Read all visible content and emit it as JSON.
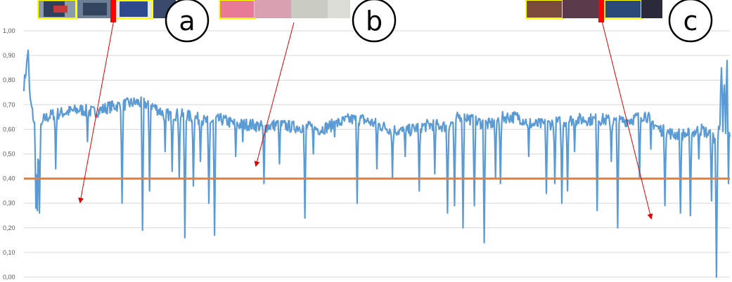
{
  "chart_data": {
    "type": "line",
    "ylim": [
      0,
      1
    ],
    "y_tick_labels": [
      "0,00",
      "0,10",
      "0,20",
      "0,30",
      "0,40",
      "0,50",
      "0,60",
      "0,70",
      "0,80",
      "0,90",
      "1,00"
    ],
    "grid": true,
    "threshold": 0.4,
    "x_count": 1000,
    "series": [
      {
        "color": "#5b9bd5",
        "baseline": [
          [
            0,
            0.78
          ],
          [
            4,
            0.86
          ],
          [
            6,
            0.93
          ],
          [
            8,
            0.75
          ],
          [
            10,
            0.7
          ],
          [
            12,
            0.67
          ],
          [
            16,
            0.6
          ],
          [
            22,
            0.58
          ],
          [
            28,
            0.64
          ],
          [
            40,
            0.66
          ],
          [
            60,
            0.67
          ],
          [
            80,
            0.68
          ],
          [
            100,
            0.67
          ],
          [
            120,
            0.69
          ],
          [
            140,
            0.7
          ],
          [
            160,
            0.71
          ],
          [
            180,
            0.7
          ],
          [
            200,
            0.66
          ],
          [
            220,
            0.66
          ],
          [
            240,
            0.65
          ],
          [
            260,
            0.63
          ],
          [
            280,
            0.64
          ],
          [
            300,
            0.62
          ],
          [
            320,
            0.62
          ],
          [
            340,
            0.61
          ],
          [
            360,
            0.62
          ],
          [
            380,
            0.61
          ],
          [
            400,
            0.61
          ],
          [
            420,
            0.6
          ],
          [
            440,
            0.62
          ],
          [
            460,
            0.64
          ],
          [
            480,
            0.64
          ],
          [
            500,
            0.62
          ],
          [
            520,
            0.6
          ],
          [
            540,
            0.59
          ],
          [
            560,
            0.61
          ],
          [
            580,
            0.62
          ],
          [
            600,
            0.61
          ],
          [
            620,
            0.66
          ],
          [
            640,
            0.63
          ],
          [
            660,
            0.62
          ],
          [
            680,
            0.65
          ],
          [
            700,
            0.65
          ],
          [
            720,
            0.62
          ],
          [
            740,
            0.62
          ],
          [
            760,
            0.63
          ],
          [
            780,
            0.64
          ],
          [
            800,
            0.64
          ],
          [
            820,
            0.64
          ],
          [
            840,
            0.63
          ],
          [
            860,
            0.64
          ],
          [
            880,
            0.66
          ],
          [
            900,
            0.6
          ],
          [
            920,
            0.58
          ],
          [
            940,
            0.58
          ],
          [
            960,
            0.6
          ],
          [
            980,
            0.56
          ],
          [
            1000,
            0.58
          ]
        ],
        "dips": [
          [
            17,
            0.28
          ],
          [
            19,
            0.27
          ],
          [
            22,
            0.26
          ],
          [
            45,
            0.44
          ],
          [
            90,
            0.55
          ],
          [
            139,
            0.3
          ],
          [
            168,
            0.19
          ],
          [
            178,
            0.35
          ],
          [
            200,
            0.51
          ],
          [
            210,
            0.43
          ],
          [
            220,
            0.4
          ],
          [
            228,
            0.16
          ],
          [
            240,
            0.37
          ],
          [
            250,
            0.47
          ],
          [
            262,
            0.3
          ],
          [
            270,
            0.17
          ],
          [
            300,
            0.49
          ],
          [
            310,
            0.55
          ],
          [
            340,
            0.38
          ],
          [
            362,
            0.46
          ],
          [
            398,
            0.24
          ],
          [
            410,
            0.5
          ],
          [
            440,
            0.57
          ],
          [
            472,
            0.3
          ],
          [
            500,
            0.44
          ],
          [
            522,
            0.4
          ],
          [
            540,
            0.49
          ],
          [
            560,
            0.35
          ],
          [
            582,
            0.42
          ],
          [
            600,
            0.26
          ],
          [
            610,
            0.29
          ],
          [
            622,
            0.2
          ],
          [
            638,
            0.29
          ],
          [
            652,
            0.14
          ],
          [
            668,
            0.4
          ],
          [
            675,
            0.38
          ],
          [
            715,
            0.49
          ],
          [
            740,
            0.34
          ],
          [
            752,
            0.38
          ],
          [
            762,
            0.3
          ],
          [
            770,
            0.35
          ],
          [
            780,
            0.51
          ],
          [
            812,
            0.27
          ],
          [
            832,
            0.47
          ],
          [
            841,
            0.2
          ],
          [
            872,
            0.4
          ],
          [
            888,
            0.52
          ],
          [
            908,
            0.29
          ],
          [
            930,
            0.26
          ],
          [
            944,
            0.25
          ],
          [
            956,
            0.48
          ],
          [
            974,
            0.31
          ],
          [
            981,
            0.0
          ],
          [
            985,
            0.6
          ],
          [
            988,
            0.85
          ],
          [
            992,
            0.78
          ],
          [
            996,
            0.88
          ],
          [
            998,
            0.38
          ],
          [
            1000,
            0.57
          ]
        ]
      }
    ]
  }
}
